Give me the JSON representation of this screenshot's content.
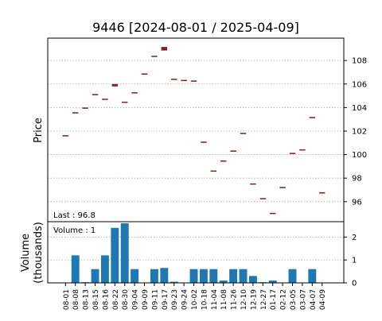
{
  "chart_data": [
    {
      "type": "candlestick",
      "title": "9446   [2024-08-01 / 2025-04-09]",
      "ylabel": "Price",
      "annotation": "Last : 96.8",
      "categories": [
        "08-01",
        "08-08",
        "08-13",
        "08-15",
        "08-16",
        "08-22",
        "08-30",
        "09-04",
        "09-09",
        "09-11",
        "09-17",
        "09-23",
        "09-24",
        "10-02",
        "10-18",
        "11-04",
        "11-08",
        "11-26",
        "12-10",
        "12-19",
        "12-27",
        "01-17",
        "02-12",
        "03-05",
        "03-07",
        "04-07",
        "04-09"
      ],
      "open": [
        101.6,
        103.55,
        103.95,
        105.1,
        104.7,
        105.8,
        104.35,
        105.25,
        106.85,
        108.35,
        108.85,
        106.4,
        106.3,
        106.25,
        101.05,
        98.6,
        99.45,
        100.3,
        101.8,
        97.5,
        96.25,
        95.0,
        97.2,
        100.1,
        100.4,
        103.15,
        96.75
      ],
      "close": [
        101.6,
        103.55,
        103.95,
        105.1,
        104.7,
        106.0,
        104.45,
        105.25,
        106.85,
        108.35,
        109.15,
        106.4,
        106.3,
        106.25,
        101.05,
        98.6,
        99.45,
        100.3,
        101.8,
        97.5,
        96.25,
        95.0,
        97.2,
        100.1,
        100.4,
        103.15,
        96.75
      ],
      "color": "#8b1a1a",
      "ylim": [
        94.3,
        109.9
      ],
      "yticks": [
        96,
        98,
        100,
        102,
        104,
        106,
        108
      ],
      "grid": true
    },
    {
      "type": "bar",
      "ylabel": [
        "Volume",
        "(thousands)"
      ],
      "annotation": "Volume : 1",
      "values": [
        0,
        1.2,
        0.03,
        0.6,
        1.2,
        2.4,
        2.6,
        0.6,
        0,
        0.6,
        0.65,
        0.05,
        0,
        0.6,
        0.6,
        0.6,
        0.1,
        0.6,
        0.6,
        0.3,
        0.03,
        0.1,
        0,
        0.6,
        0,
        0.6,
        0
      ],
      "color": "#1f77b4",
      "ylim": [
        0,
        2.67
      ],
      "yticks": [
        0,
        1,
        2
      ],
      "grid": true
    }
  ]
}
